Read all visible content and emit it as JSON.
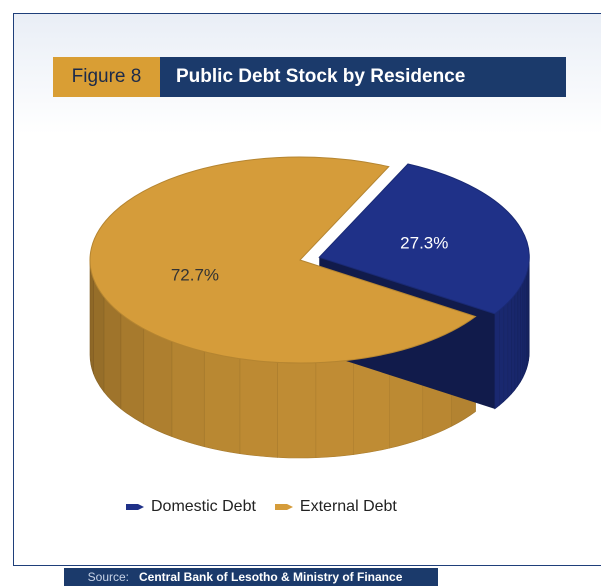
{
  "figure": {
    "label": "Figure 8",
    "title": "Public Debt Stock by Residence"
  },
  "source": {
    "label": "Source:",
    "text": "Central Bank of Lesotho & Ministry of Finance"
  },
  "colors": {
    "domestic": "#1f3188",
    "external": "#d59c3a",
    "title_bar": "#1b3a6b",
    "label_bar": "#d99e34"
  },
  "chart_data": {
    "type": "pie",
    "style": "3d",
    "slices": [
      {
        "label": "Domestic Debt",
        "value": 27.3,
        "value_label": "27.3%",
        "color": "#1f3188"
      },
      {
        "label": "External Debt",
        "value": 72.7,
        "value_label": "72.7%",
        "color": "#d59c3a"
      }
    ],
    "legend": [
      "Domestic Debt",
      "External Debt"
    ],
    "legend_position": "bottom"
  }
}
